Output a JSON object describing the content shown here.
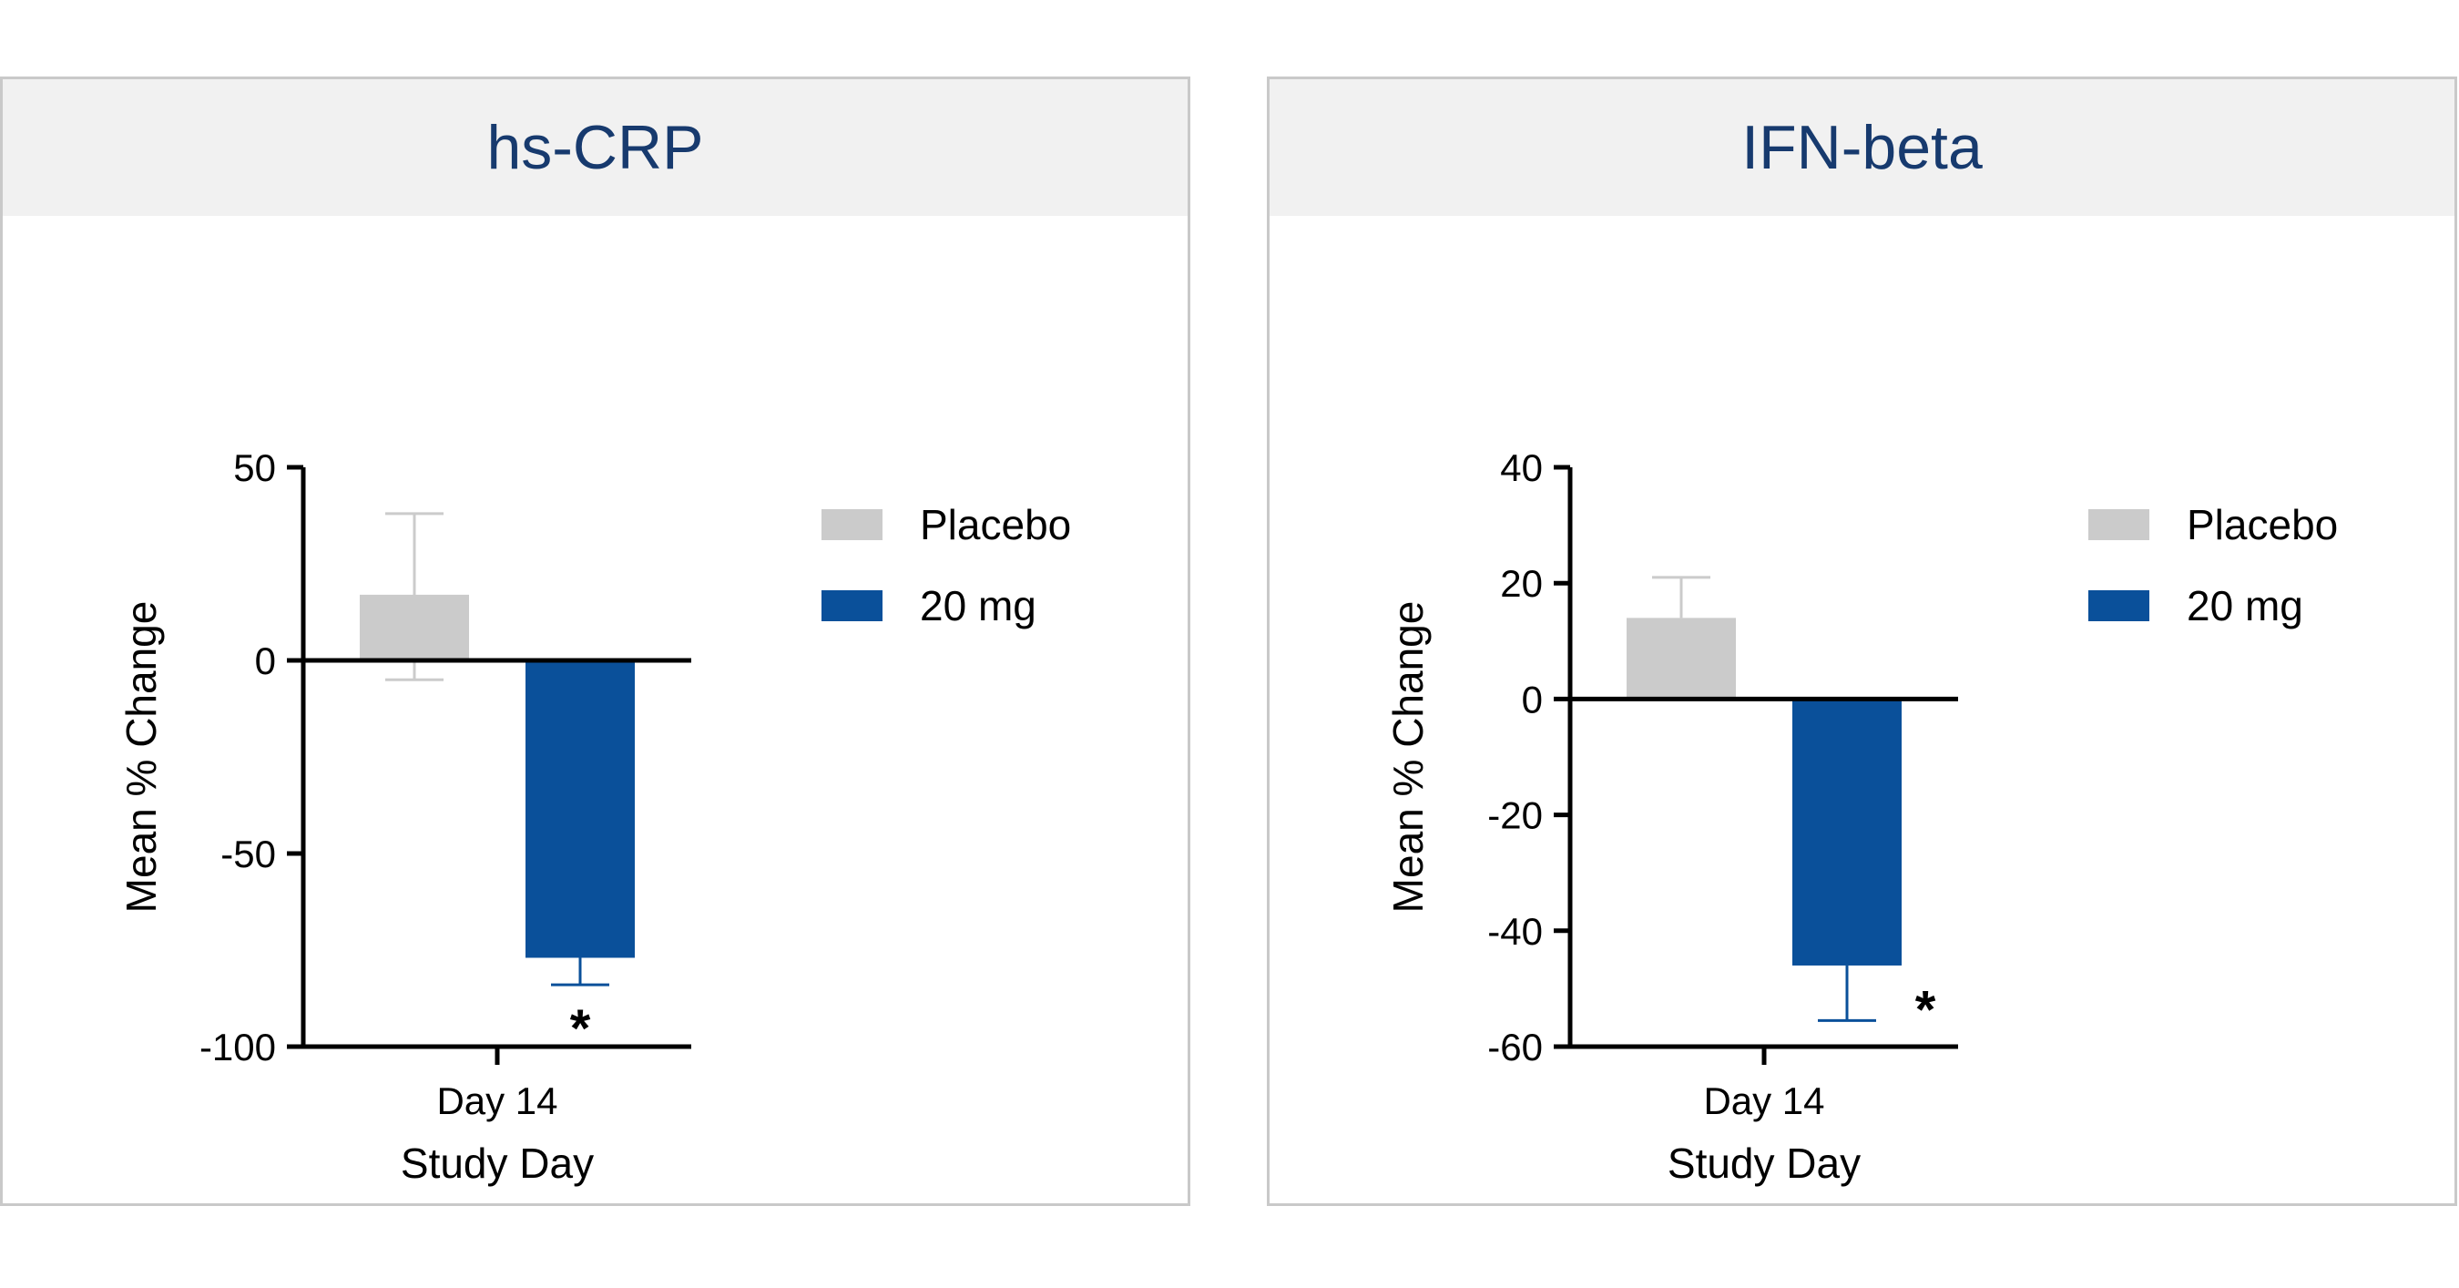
{
  "colors": {
    "placebo": "#cbcbcb",
    "dose": "#0a509a",
    "axis": "#000000",
    "title": "#173a6e"
  },
  "chart_data": [
    {
      "type": "bar",
      "title": "hs-CRP",
      "xlabel": "Study Day",
      "ylabel": "Mean % Change",
      "ylim": [
        -100,
        50
      ],
      "yticks": [
        50,
        0,
        -50,
        -100
      ],
      "categories": [
        "Day 14"
      ],
      "legend": [
        "Placebo",
        "20 mg"
      ],
      "legend_position": "top-right",
      "series": [
        {
          "name": "Placebo",
          "values": [
            17
          ],
          "error_low": [
            -5
          ],
          "error_high": [
            38
          ]
        },
        {
          "name": "20 mg",
          "values": [
            -77
          ],
          "error_low": [
            -84
          ],
          "error_high": [
            -77
          ]
        }
      ],
      "annotations": [
        {
          "series": "20 mg",
          "text": "*",
          "position": "below"
        }
      ]
    },
    {
      "type": "bar",
      "title": "IFN-beta",
      "xlabel": "Study Day",
      "ylabel": "Mean % Change",
      "ylim": [
        -60,
        40
      ],
      "yticks": [
        40,
        20,
        0,
        -20,
        -40,
        -60
      ],
      "categories": [
        "Day 14"
      ],
      "legend": [
        "Placebo",
        "20 mg"
      ],
      "legend_position": "top-right",
      "series": [
        {
          "name": "Placebo",
          "values": [
            14
          ],
          "error_low": [
            14
          ],
          "error_high": [
            21
          ]
        },
        {
          "name": "20 mg",
          "values": [
            -46
          ],
          "error_low": [
            -55.5
          ],
          "error_high": [
            -46
          ]
        }
      ],
      "annotations": [
        {
          "series": "20 mg",
          "text": "*",
          "position": "right"
        }
      ]
    }
  ]
}
